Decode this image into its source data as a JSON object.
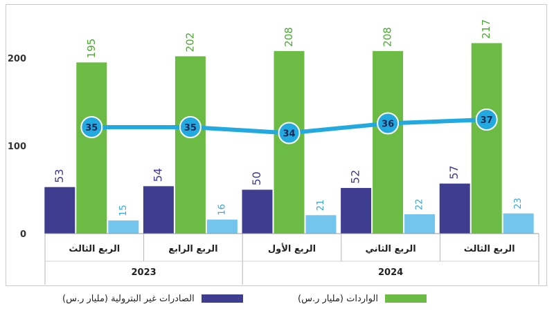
{
  "chart_data": {
    "type": "bar",
    "categories": [
      "الربع الثالث",
      "الربع الرابع",
      "الربع الأول",
      "الربع الثاني",
      "الربع الثالث"
    ],
    "years": [
      {
        "label": "2023",
        "span": [
          0,
          1
        ]
      },
      {
        "label": "2024",
        "span": [
          2,
          4
        ]
      }
    ],
    "series": [
      {
        "name": "الصادرات غير البترولية (مليار ر.س)",
        "kind": "bar",
        "color": "#3f3d8f",
        "values": [
          53,
          54,
          50,
          52,
          57
        ]
      },
      {
        "name": "الواردات (مليار ر.س)",
        "kind": "bar",
        "color": "#6cbb45",
        "values": [
          195,
          202,
          208,
          208,
          217
        ]
      },
      {
        "name": "",
        "kind": "bar",
        "color": "#74c5ee",
        "values": [
          15,
          16,
          21,
          22,
          23
        ]
      },
      {
        "name": "",
        "kind": "line",
        "color": "#22a9e0",
        "values": [
          35,
          35,
          34,
          36,
          37
        ]
      }
    ],
    "yticks": [
      0,
      100,
      200
    ],
    "ylim": [
      0,
      240
    ],
    "grid": false,
    "legend_position": "bottom"
  },
  "legend": {
    "items": [
      {
        "label": "الصادرات غير البترولية (مليار ر.س)",
        "color": "#3f3d8f"
      },
      {
        "label": "الواردات (مليار ر.س)",
        "color": "#6cbb45"
      }
    ]
  }
}
